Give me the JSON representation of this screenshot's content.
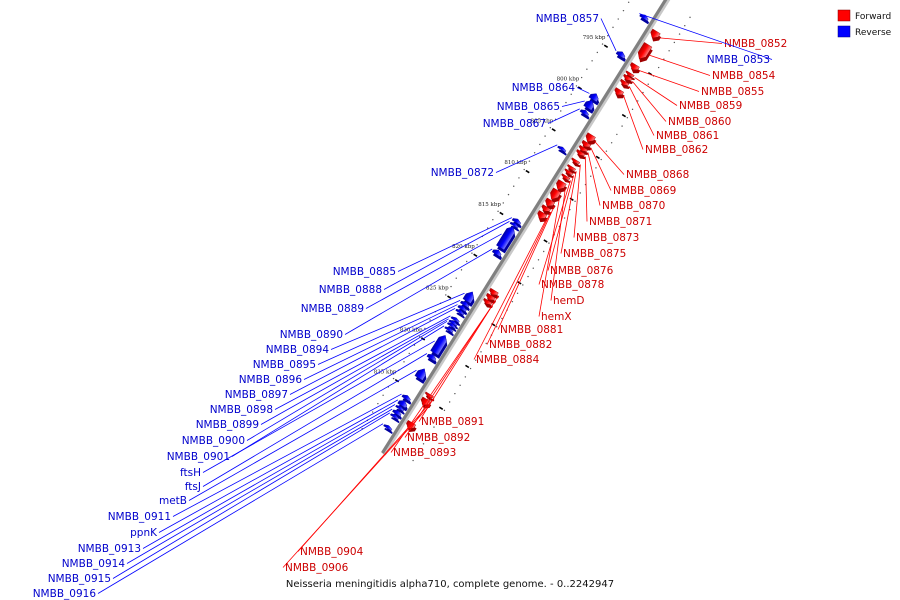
{
  "caption": "Neisseria meningitidis alpha710, complete genome. - 0..2242947",
  "legend": [
    {
      "label": "Forward",
      "color": "#ff0000"
    },
    {
      "label": "Reverse",
      "color": "#0000ff"
    }
  ],
  "colors": {
    "forward": "#ff0000",
    "reverse": "#0000ff",
    "backbone": "#808080"
  },
  "ticks": [
    {
      "label": "795 kbp",
      "kbp": 795
    },
    {
      "label": "800 kbp",
      "kbp": 800
    },
    {
      "label": "805 kbp",
      "kbp": 805
    },
    {
      "label": "810 kbp",
      "kbp": 810
    },
    {
      "label": "815 kbp",
      "kbp": 815
    },
    {
      "label": "820 kbp",
      "kbp": 820
    },
    {
      "label": "825 kbp",
      "kbp": 825
    },
    {
      "label": "830 kbp",
      "kbp": 830
    },
    {
      "label": "835 kbp",
      "kbp": 835
    }
  ],
  "forward_genes": [
    {
      "label": "NMBB_0852",
      "start": 791.0,
      "end": 791.8
    },
    {
      "label": "NMBB_0854",
      "start": 792.6,
      "end": 794.3
    },
    {
      "label": "NMBB_0855",
      "start": 795.0,
      "end": 795.6
    },
    {
      "label": "NMBB_0859",
      "start": 796.0,
      "end": 796.3
    },
    {
      "label": "NMBB_0860",
      "start": 796.4,
      "end": 796.8
    },
    {
      "label": "NMBB_0861",
      "start": 797.0,
      "end": 797.4
    },
    {
      "label": "NMBB_0862",
      "start": 798.0,
      "end": 798.6
    },
    {
      "label": "NMBB_0868",
      "start": 803.4,
      "end": 804.2
    },
    {
      "label": "NMBB_0869",
      "start": 804.3,
      "end": 804.8
    },
    {
      "label": "NMBB_0870",
      "start": 804.9,
      "end": 805.3
    },
    {
      "label": "NMBB_0871",
      "start": 805.4,
      "end": 805.8
    },
    {
      "label": "NMBB_0873",
      "start": 806.4,
      "end": 806.7
    },
    {
      "label": "NMBB_0875",
      "start": 807.2,
      "end": 807.5
    },
    {
      "label": "NMBB_0876",
      "start": 807.7,
      "end": 808.0
    },
    {
      "label": "NMBB_0878",
      "start": 808.3,
      "end": 808.6
    },
    {
      "label": "hemD",
      "start": 809.0,
      "end": 809.9
    },
    {
      "label": "hemX",
      "start": 810.0,
      "end": 811.1
    },
    {
      "label": "NMBB_0881",
      "start": 811.2,
      "end": 811.9
    },
    {
      "label": "NMBB_0882",
      "start": 812.0,
      "end": 812.5
    },
    {
      "label": "NMBB_0884",
      "start": 812.7,
      "end": 813.4
    },
    {
      "label": "NMBB_0891",
      "start": 822.0,
      "end": 822.5
    },
    {
      "label": "NMBB_0892",
      "start": 822.6,
      "end": 823.1
    },
    {
      "label": "NMBB_0893",
      "start": 823.2,
      "end": 823.6
    },
    {
      "label": "NMBB_0904",
      "start": 834.4,
      "end": 834.7
    },
    {
      "label": "NMBB_0906",
      "start": 835.0,
      "end": 835.7
    },
    {
      "label": "",
      "start": 837.8,
      "end": 838.5
    }
  ],
  "reverse_genes": [
    {
      "label": "NMBB_0853",
      "start": 790.2,
      "end": 790.6
    },
    {
      "label": "NMBB_0857",
      "start": 794.6,
      "end": 795.1
    },
    {
      "label": "NMBB_0864",
      "start": 799.6,
      "end": 800.3
    },
    {
      "label": "NMBB_0865",
      "start": 800.4,
      "end": 801.3
    },
    {
      "label": "NMBB_0867",
      "start": 801.6,
      "end": 802.0
    },
    {
      "label": "NMBB_0872",
      "start": 806.0,
      "end": 806.2
    },
    {
      "label": "NMBB_0885",
      "start": 814.6,
      "end": 815.0
    },
    {
      "label": "NMBB_0888",
      "start": 815.1,
      "end": 815.4
    },
    {
      "label": "NMBB_0889",
      "start": 815.5,
      "end": 818.0
    },
    {
      "label": "NMBB_0890",
      "start": 818.3,
      "end": 818.8
    },
    {
      "label": "NMBB_0894",
      "start": 823.3,
      "end": 824.4
    },
    {
      "label": "NMBB_0895",
      "start": 824.5,
      "end": 824.9
    },
    {
      "label": "NMBB_0896",
      "start": 825.0,
      "end": 825.4
    },
    {
      "label": "NMBB_0897",
      "start": 825.5,
      "end": 825.8
    },
    {
      "label": "NMBB_0898",
      "start": 826.4,
      "end": 826.7
    },
    {
      "label": "NMBB_0899",
      "start": 826.8,
      "end": 827.0
    },
    {
      "label": "NMBB_0900",
      "start": 827.1,
      "end": 827.3
    },
    {
      "label": "NMBB_0901",
      "start": 827.6,
      "end": 827.9
    },
    {
      "label": "ftsH",
      "start": 828.5,
      "end": 830.6
    },
    {
      "label": "ftsJ",
      "start": 830.8,
      "end": 831.3
    },
    {
      "label": "metB",
      "start": 832.5,
      "end": 833.6
    },
    {
      "label": "NMBB_0911",
      "start": 835.7,
      "end": 836.1
    },
    {
      "label": "ppnK",
      "start": 836.3,
      "end": 836.9
    },
    {
      "label": "NMBB_0913",
      "start": 837.0,
      "end": 837.3
    },
    {
      "label": "NMBB_0914",
      "start": 837.5,
      "end": 837.9
    },
    {
      "label": "NMBB_0915",
      "start": 838.0,
      "end": 838.3
    },
    {
      "label": "NMBB_0916",
      "start": 839.3,
      "end": 839.6
    }
  ]
}
